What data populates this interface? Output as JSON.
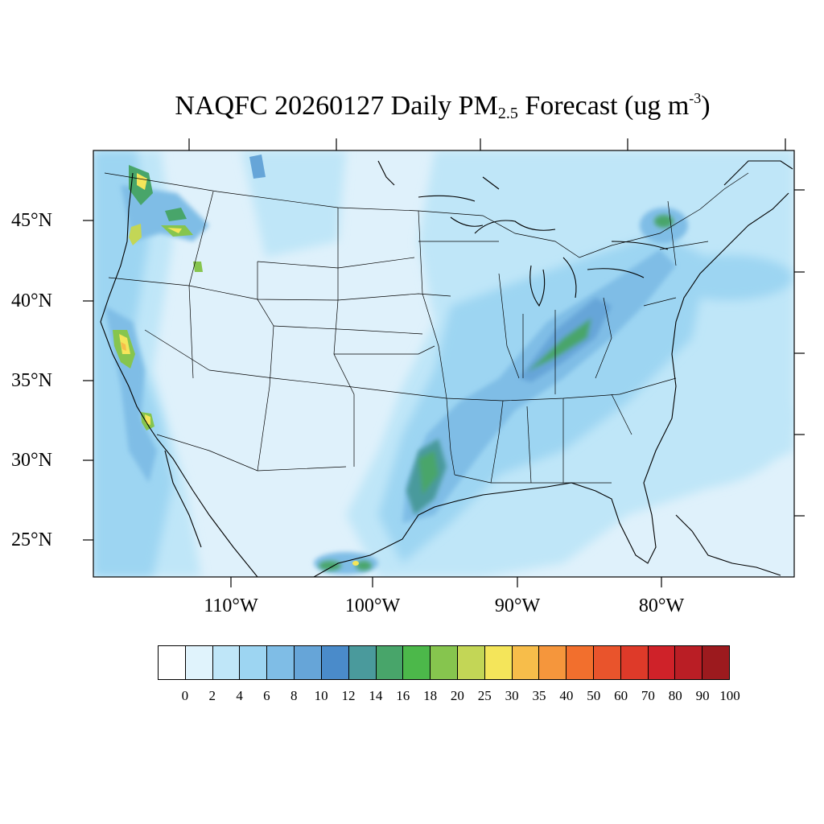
{
  "title": {
    "prefix": "NAQFC 20260127 Daily PM",
    "sub": "2.5",
    "middle": " Forecast (ug m",
    "sup": "-3",
    "suffix": ")"
  },
  "map": {
    "lat_labels": [
      "45°N",
      "40°N",
      "35°N",
      "30°N",
      "25°N"
    ],
    "lon_labels": [
      "110°W",
      "100°W",
      "90°W",
      "80°W"
    ],
    "background_color": "#dff1fb"
  },
  "colorbar": {
    "levels": [
      "0",
      "2",
      "4",
      "6",
      "8",
      "10",
      "12",
      "14",
      "16",
      "18",
      "20",
      "25",
      "30",
      "35",
      "40",
      "50",
      "60",
      "70",
      "80",
      "90",
      "100"
    ],
    "colors": [
      "#ffffff",
      "#e0f3fc",
      "#bfe6f8",
      "#9dd5f2",
      "#7fbde6",
      "#66a5d8",
      "#4a8bca",
      "#4a9a9c",
      "#48a56a",
      "#4cb84a",
      "#86c54e",
      "#c3d656",
      "#f4e55a",
      "#f7bd4a",
      "#f5963c",
      "#f26f2d",
      "#e9542c",
      "#de3a29",
      "#cf2229",
      "#ba1e25",
      "#9c1a1e"
    ]
  }
}
